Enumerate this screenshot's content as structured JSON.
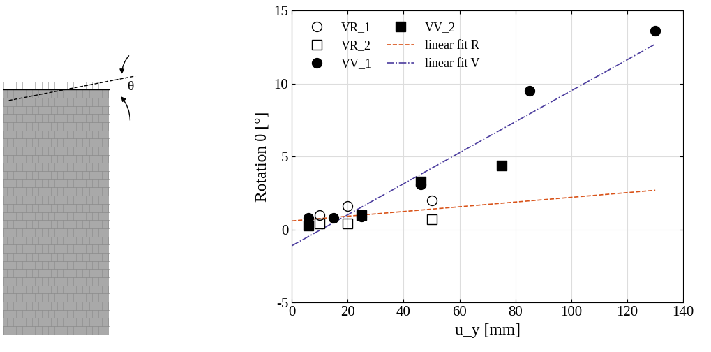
{
  "chart_data": {
    "type": "scatter",
    "x_label": "u_y [mm]",
    "y_label": "Rotation θ [°]",
    "image_annotation": "θ",
    "xlim": [
      0,
      140
    ],
    "xticks": [
      0,
      20,
      40,
      60,
      80,
      100,
      120,
      140
    ],
    "ylim": [
      -5,
      15
    ],
    "yticks": [
      -5,
      0,
      5,
      10,
      15
    ],
    "grid": true,
    "legend": "upper left",
    "series": [
      {
        "name": "VR_1",
        "type": "scatter",
        "marker": "circle",
        "filled": false,
        "color": "#000000",
        "x": [
          10,
          20,
          50
        ],
        "values": [
          1.0,
          1.6,
          2.0
        ]
      },
      {
        "name": "VR_2",
        "type": "scatter",
        "marker": "square",
        "filled": false,
        "color": "#000000",
        "x": [
          10,
          20,
          50
        ],
        "values": [
          0.4,
          0.4,
          0.7
        ]
      },
      {
        "name": "VV_1",
        "type": "scatter",
        "marker": "circle",
        "filled": true,
        "color": "#000000",
        "x": [
          6,
          15,
          25,
          46,
          85,
          130
        ],
        "values": [
          0.8,
          0.8,
          0.9,
          3.1,
          9.5,
          13.6
        ]
      },
      {
        "name": "VV_2",
        "type": "scatter",
        "marker": "square",
        "filled": true,
        "color": "#000000",
        "x": [
          6,
          25,
          46,
          75
        ],
        "values": [
          0.3,
          1.0,
          3.3,
          4.4
        ]
      },
      {
        "name": "linear fit R",
        "type": "line",
        "line_style": "dashed",
        "color": "#d95319",
        "x": [
          0,
          130
        ],
        "values": [
          0.6,
          2.7
        ]
      },
      {
        "name": "linear fit V",
        "type": "line",
        "line_style": "dashdot",
        "color": "#4b3c9e",
        "x": [
          0,
          130
        ],
        "values": [
          -1.1,
          12.7
        ]
      }
    ]
  }
}
